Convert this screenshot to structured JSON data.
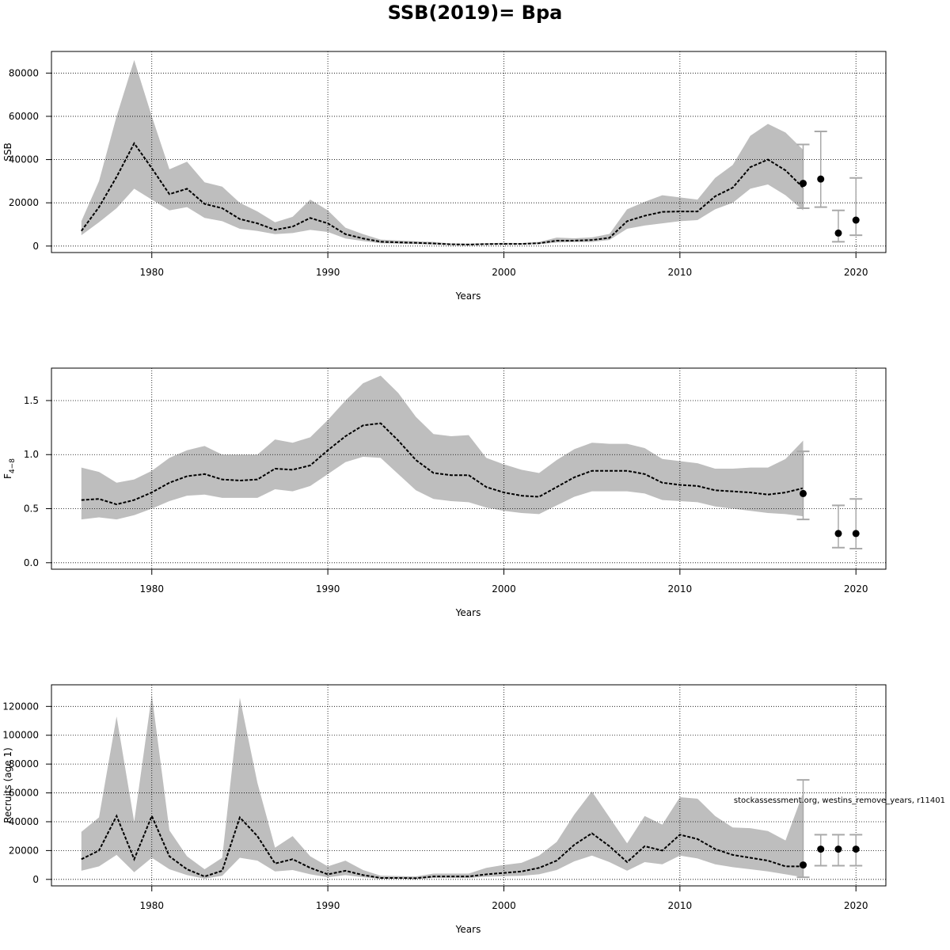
{
  "title": "SSB(2019)= Bpa",
  "watermark": "stockassessment.org, westins_remove_years, r11401",
  "colors": {
    "band": "#bebebe",
    "line": "#000000",
    "grid": "#000000",
    "errorbar": "#a9a9a9"
  },
  "chart_data": [
    {
      "type": "line",
      "ylabel": "SSB",
      "xlabel": "Years",
      "xlim": [
        1974.3,
        2021.7
      ],
      "ylim": [
        -3000,
        90000
      ],
      "xticks": [
        1980,
        1990,
        2000,
        2010,
        2020
      ],
      "yticks": [
        0,
        20000,
        40000,
        60000,
        80000
      ],
      "grid": true,
      "series": [
        {
          "x": [
            1976,
            1977,
            1978,
            1979,
            1980,
            1981,
            1982,
            1983,
            1984,
            1985,
            1986,
            1987,
            1988,
            1989,
            1990,
            1991,
            1992,
            1993,
            1994,
            1995,
            1996,
            1997,
            1998,
            1999,
            2000,
            2001,
            2002,
            2003,
            2004,
            2005,
            2006,
            2007,
            2008,
            2009,
            2010,
            2011,
            2012,
            2013,
            2014,
            2015,
            2016,
            2017
          ],
          "estimate": [
            7000,
            18000,
            32000,
            47500,
            36000,
            24000,
            26500,
            19500,
            17500,
            12500,
            10500,
            7500,
            9000,
            13000,
            10500,
            5500,
            3500,
            2000,
            1700,
            1500,
            1200,
            800,
            700,
            900,
            1000,
            1000,
            1300,
            2500,
            2500,
            2800,
            3800,
            11500,
            14000,
            15800,
            16000,
            16000,
            23000,
            27000,
            36500,
            40000,
            35000,
            27000
          ],
          "lower": [
            5000,
            11000,
            17500,
            26500,
            21500,
            16500,
            18000,
            13000,
            11500,
            8000,
            7000,
            5500,
            6000,
            7500,
            6500,
            3500,
            2300,
            1300,
            1100,
            900,
            700,
            500,
            400,
            600,
            700,
            700,
            900,
            1600,
            1800,
            1900,
            2800,
            8000,
            9500,
            10500,
            11500,
            12000,
            17000,
            20000,
            26500,
            28500,
            23500,
            16500
          ],
          "upper": [
            11500,
            30000,
            60000,
            86000,
            60000,
            35500,
            39000,
            29500,
            27500,
            20000,
            16000,
            11000,
            13500,
            21500,
            16500,
            8500,
            5500,
            3000,
            2600,
            2200,
            1900,
            1200,
            1100,
            1300,
            1500,
            1400,
            1900,
            3900,
            3600,
            4000,
            5600,
            17000,
            20500,
            23500,
            22500,
            21500,
            31500,
            37500,
            51000,
            56500,
            52500,
            44500
          ]
        }
      ],
      "points": [
        {
          "year": 2017,
          "value": 29000,
          "low": 17500,
          "high": 47000
        },
        {
          "year": 2018,
          "value": 31000,
          "low": 18000,
          "high": 53000
        },
        {
          "year": 2019,
          "value": 6000,
          "low": 2000,
          "high": 16500
        },
        {
          "year": 2020,
          "value": 12000,
          "low": 5000,
          "high": 31500
        }
      ]
    },
    {
      "type": "line",
      "ylabel": "F",
      "ylabel_subscript": "4−8",
      "xlabel": "Years",
      "xlim": [
        1974.3,
        2021.7
      ],
      "ylim": [
        -0.06,
        1.8
      ],
      "xticks": [
        1980,
        1990,
        2000,
        2010,
        2020
      ],
      "yticks": [
        "0.0",
        "0.5",
        "1.0",
        "1.5"
      ],
      "ytick_values": [
        0,
        0.5,
        1.0,
        1.5
      ],
      "grid": true,
      "series": [
        {
          "x": [
            1976,
            1977,
            1978,
            1979,
            1980,
            1981,
            1982,
            1983,
            1984,
            1985,
            1986,
            1987,
            1988,
            1989,
            1990,
            1991,
            1992,
            1993,
            1994,
            1995,
            1996,
            1997,
            1998,
            1999,
            2000,
            2001,
            2002,
            2003,
            2004,
            2005,
            2006,
            2007,
            2008,
            2009,
            2010,
            2011,
            2012,
            2013,
            2014,
            2015,
            2016,
            2017
          ],
          "estimate": [
            0.58,
            0.59,
            0.54,
            0.58,
            0.65,
            0.74,
            0.8,
            0.82,
            0.77,
            0.76,
            0.77,
            0.87,
            0.86,
            0.9,
            1.04,
            1.17,
            1.27,
            1.29,
            1.13,
            0.95,
            0.83,
            0.81,
            0.81,
            0.7,
            0.65,
            0.62,
            0.61,
            0.7,
            0.79,
            0.85,
            0.85,
            0.85,
            0.82,
            0.74,
            0.72,
            0.71,
            0.67,
            0.66,
            0.65,
            0.63,
            0.65,
            0.69
          ],
          "lower": [
            0.4,
            0.42,
            0.4,
            0.44,
            0.5,
            0.57,
            0.62,
            0.63,
            0.6,
            0.6,
            0.6,
            0.68,
            0.66,
            0.71,
            0.82,
            0.93,
            0.98,
            0.97,
            0.82,
            0.67,
            0.59,
            0.57,
            0.56,
            0.51,
            0.48,
            0.46,
            0.45,
            0.53,
            0.61,
            0.66,
            0.66,
            0.66,
            0.64,
            0.58,
            0.57,
            0.56,
            0.52,
            0.5,
            0.48,
            0.46,
            0.45,
            0.43
          ],
          "upper": [
            0.88,
            0.84,
            0.74,
            0.77,
            0.85,
            0.97,
            1.04,
            1.08,
            1.0,
            1.0,
            1.0,
            1.14,
            1.11,
            1.16,
            1.32,
            1.5,
            1.66,
            1.73,
            1.57,
            1.35,
            1.19,
            1.17,
            1.18,
            0.97,
            0.91,
            0.86,
            0.83,
            0.95,
            1.05,
            1.11,
            1.1,
            1.1,
            1.06,
            0.96,
            0.94,
            0.92,
            0.87,
            0.87,
            0.88,
            0.88,
            0.96,
            1.13
          ]
        }
      ],
      "points": [
        {
          "year": 2017,
          "value": 0.64,
          "low": 0.4,
          "high": 1.03
        },
        {
          "year": 2019,
          "value": 0.27,
          "low": 0.14,
          "high": 0.53
        },
        {
          "year": 2020,
          "value": 0.27,
          "low": 0.13,
          "high": 0.59
        }
      ]
    },
    {
      "type": "line",
      "ylabel": "Recruits (age 1)",
      "xlabel": "Years",
      "xlim": [
        1974.3,
        2021.7
      ],
      "ylim": [
        -4500,
        135000
      ],
      "xticks": [
        1980,
        1990,
        2000,
        2010,
        2020
      ],
      "yticks": [
        0,
        20000,
        40000,
        60000,
        80000,
        100000,
        120000
      ],
      "grid": true,
      "series": [
        {
          "x": [
            1976,
            1977,
            1978,
            1979,
            1980,
            1981,
            1982,
            1983,
            1984,
            1985,
            1986,
            1987,
            1988,
            1989,
            1990,
            1991,
            1992,
            1993,
            1994,
            1995,
            1996,
            1997,
            1998,
            1999,
            2000,
            2001,
            2002,
            2003,
            2004,
            2005,
            2006,
            2007,
            2008,
            2009,
            2010,
            2011,
            2012,
            2013,
            2014,
            2015,
            2016,
            2017
          ],
          "estimate": [
            14000,
            20000,
            44000,
            14000,
            44000,
            16000,
            7000,
            2000,
            6000,
            43000,
            30000,
            11000,
            14000,
            8000,
            3500,
            6000,
            3000,
            1000,
            1000,
            800,
            2000,
            2000,
            2000,
            3500,
            4500,
            5500,
            8000,
            13000,
            24000,
            32000,
            23000,
            12000,
            23000,
            20000,
            31000,
            28000,
            21000,
            17000,
            15000,
            13000,
            9000,
            9000
          ],
          "lower": [
            6000,
            9000,
            17000,
            5000,
            15000,
            7000,
            3000,
            500,
            2500,
            15000,
            13000,
            5500,
            6500,
            3500,
            1500,
            3000,
            1500,
            400,
            500,
            300,
            1000,
            1000,
            1000,
            1800,
            2200,
            2500,
            3500,
            6500,
            12500,
            16500,
            12000,
            6000,
            12000,
            10500,
            16500,
            14500,
            10500,
            8500,
            7000,
            5500,
            3500,
            1500
          ],
          "upper": [
            33000,
            43000,
            113000,
            40000,
            128000,
            34000,
            16000,
            7000,
            15000,
            126000,
            67000,
            22000,
            30000,
            16000,
            9000,
            13000,
            6500,
            2600,
            2300,
            2000,
            4000,
            4000,
            4000,
            8000,
            10000,
            11500,
            16500,
            26000,
            45000,
            61000,
            43000,
            25000,
            44000,
            38000,
            57000,
            56000,
            44000,
            36000,
            35500,
            33500,
            27000,
            60000
          ]
        }
      ],
      "points": [
        {
          "year": 2017,
          "value": 10000,
          "low": 1500,
          "high": 69000
        },
        {
          "year": 2018,
          "value": 21000,
          "low": 9500,
          "high": 31000
        },
        {
          "year": 2019,
          "value": 21000,
          "low": 9500,
          "high": 31000
        },
        {
          "year": 2020,
          "value": 21000,
          "low": 9500,
          "high": 31000
        }
      ]
    }
  ]
}
